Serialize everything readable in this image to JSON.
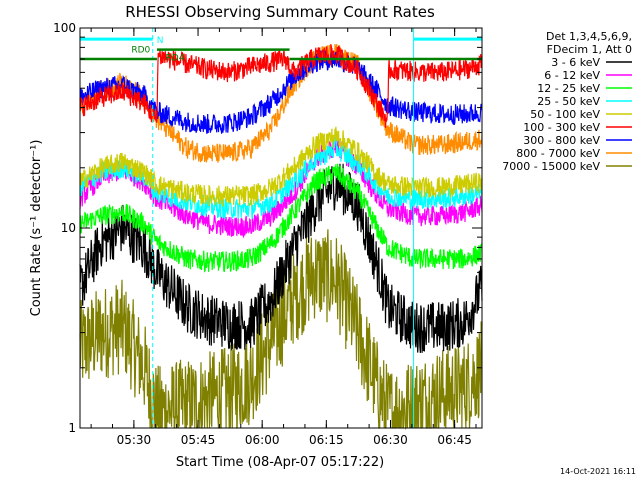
{
  "chart_data": {
    "type": "line",
    "title": "RHESSI Observing Summary Count Rates",
    "xlabel": "Start Time (08-Apr-07 05:17:22)",
    "ylabel": "Count Rate (s⁻¹ detector⁻¹)",
    "x_unit": "minutes since 05:17:22",
    "xlim": [
      0,
      94
    ],
    "ylim": [
      1,
      100
    ],
    "yscale": "log",
    "x_ticks": [
      {
        "label": "05:30",
        "value": 12.6
      },
      {
        "label": "05:45",
        "value": 27.6
      },
      {
        "label": "06:00",
        "value": 42.6
      },
      {
        "label": "06:15",
        "value": 57.6
      },
      {
        "label": "06:30",
        "value": 72.6
      },
      {
        "label": "06:45",
        "value": 87.6
      }
    ],
    "y_ticks": [
      {
        "label": "1",
        "value": 1
      },
      {
        "label": "10",
        "value": 10
      },
      {
        "label": "100",
        "value": 100
      }
    ],
    "legend": {
      "position": "right",
      "header": [
        "Det 1,3,4,5,6,9,",
        "FDecim 1, Att 0"
      ]
    },
    "series": [
      {
        "name": "3 - 6 keV",
        "color": "#000000",
        "x": [
          0,
          5,
          10,
          15,
          18,
          25,
          30,
          35,
          40,
          45,
          50,
          55,
          60,
          65,
          70,
          72,
          78,
          85,
          90,
          94
        ],
        "y": [
          5.0,
          8.5,
          10.0,
          8.0,
          6.0,
          4.0,
          3.5,
          3.3,
          3.3,
          4.5,
          8.0,
          13.0,
          17.0,
          13.0,
          6.0,
          4.0,
          3.2,
          3.2,
          3.4,
          5.0
        ]
      },
      {
        "name": "6 - 12 keV",
        "color": "#ff00ff",
        "x": [
          0,
          5,
          10,
          15,
          18,
          25,
          30,
          35,
          40,
          45,
          50,
          55,
          60,
          65,
          70,
          72,
          78,
          85,
          90,
          94
        ],
        "y": [
          14.0,
          18.0,
          19.5,
          17.0,
          14.0,
          11.5,
          10.5,
          10.2,
          10.2,
          11.5,
          15.0,
          22.0,
          26.0,
          20.0,
          14.0,
          12.5,
          11.5,
          11.5,
          12.0,
          13.0
        ]
      },
      {
        "name": "12 - 25 keV",
        "color": "#00ff00",
        "x": [
          0,
          5,
          10,
          15,
          18,
          25,
          30,
          35,
          40,
          45,
          50,
          55,
          60,
          65,
          70,
          72,
          78,
          85,
          90,
          94
        ],
        "y": [
          10.5,
          11.5,
          12.0,
          10.5,
          8.5,
          7.0,
          6.8,
          6.8,
          7.0,
          8.5,
          12.0,
          17.0,
          19.0,
          15.0,
          9.5,
          8.0,
          7.0,
          7.0,
          7.0,
          7.5
        ]
      },
      {
        "name": "25 - 50 keV",
        "color": "#00ffff",
        "x": [
          0,
          5,
          10,
          15,
          18,
          25,
          30,
          35,
          40,
          45,
          50,
          55,
          60,
          65,
          70,
          72,
          78,
          85,
          90,
          94
        ],
        "y": [
          16.0,
          19.0,
          20.0,
          18.0,
          15.0,
          13.5,
          12.8,
          12.5,
          12.5,
          13.5,
          17.0,
          22.0,
          25.0,
          21.0,
          16.0,
          14.5,
          14.0,
          14.0,
          14.5,
          15.0
        ]
      },
      {
        "name": "50 - 100 keV",
        "color": "#cccc00",
        "x": [
          0,
          5,
          10,
          15,
          18,
          25,
          30,
          35,
          40,
          45,
          50,
          55,
          60,
          65,
          70,
          72,
          78,
          85,
          90,
          94
        ],
        "y": [
          17.0,
          20.0,
          21.5,
          19.0,
          16.5,
          15.0,
          14.5,
          14.5,
          14.5,
          16.0,
          20.0,
          26.0,
          29.0,
          24.0,
          18.0,
          16.5,
          16.0,
          16.0,
          16.5,
          17.0
        ]
      },
      {
        "name": "100 - 300 keV",
        "color": "#ff0000",
        "x": [
          0,
          5,
          10,
          15,
          18,
          18.2,
          25,
          30,
          35,
          40,
          48,
          50,
          55,
          60,
          65,
          70,
          72,
          72.2,
          80,
          85,
          90,
          94
        ],
        "y": [
          40.0,
          45.0,
          48.0,
          42.0,
          34.0,
          73.0,
          66.0,
          62.0,
          60.0,
          64.0,
          70.0,
          60.0,
          72.0,
          74.0,
          62.0,
          40.0,
          34.0,
          62.0,
          60.0,
          60.0,
          62.0,
          66.0
        ]
      },
      {
        "name": "300 - 800 keV",
        "color": "#0000ff",
        "x": [
          0,
          5,
          10,
          15,
          18,
          25,
          30,
          35,
          40,
          45,
          50,
          55,
          60,
          65,
          70,
          72,
          78,
          85,
          90,
          94
        ],
        "y": [
          45.0,
          50.0,
          52.0,
          46.0,
          38.0,
          34.0,
          33.0,
          33.5,
          36.0,
          43.0,
          57.0,
          68.0,
          70.0,
          63.0,
          47.0,
          41.0,
          38.0,
          37.0,
          37.0,
          38.0
        ]
      },
      {
        "name": "800 - 7000 keV",
        "color": "#ff8c00",
        "x": [
          0,
          5,
          10,
          15,
          18,
          25,
          30,
          35,
          40,
          45,
          50,
          55,
          60,
          65,
          70,
          72,
          78,
          85,
          90,
          94
        ],
        "y": [
          40.0,
          49.0,
          53.0,
          45.0,
          35.0,
          25.0,
          23.5,
          23.5,
          25.0,
          32.0,
          52.0,
          72.0,
          75.0,
          65.0,
          38.0,
          31.0,
          26.0,
          26.0,
          27.0,
          28.0
        ]
      },
      {
        "name": "7000 - 15000 keV",
        "color": "#808000",
        "x": [
          0,
          5,
          10,
          15,
          18,
          25,
          30,
          35,
          40,
          45,
          50,
          55,
          60,
          65,
          70,
          72,
          78,
          85,
          90,
          94
        ],
        "y": [
          2.5,
          3.0,
          3.2,
          2.0,
          1.2,
          1.3,
          1.4,
          1.5,
          1.8,
          2.8,
          4.5,
          6.0,
          5.5,
          3.0,
          1.5,
          1.2,
          1.3,
          1.5,
          1.6,
          2.0
        ]
      }
    ],
    "attenuator_markers": {
      "label": "N",
      "color": "#00ffff",
      "bars": [
        {
          "start": 0,
          "end": 17
        },
        {
          "start": 78,
          "end": 94
        }
      ],
      "solid_lines": [
        0,
        78
      ],
      "dashed_lines": [
        17,
        94
      ]
    },
    "decimation": {
      "color": "#008000",
      "labels": [
        {
          "text": "RD0",
          "x": 12.0,
          "y": 78.0
        },
        {
          "text": "RD4",
          "x": 20.0,
          "y": 71.0
        }
      ],
      "segments": [
        {
          "x0": 0,
          "x1": 18,
          "y": 70.0
        },
        {
          "x0": 18,
          "x1": 49,
          "y": 78.0
        },
        {
          "x0": 49,
          "x1": 94,
          "y": 70.0
        }
      ]
    }
  },
  "timestamp": "14-Oct-2021 16:11"
}
